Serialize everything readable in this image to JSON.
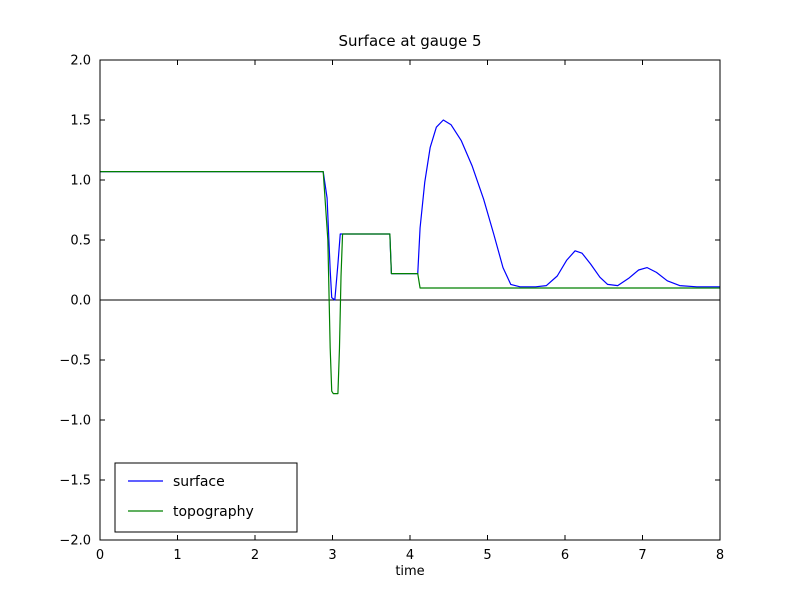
{
  "figure": {
    "background": "#ffffff",
    "axes_edge_color": "#000000"
  },
  "chart_data": {
    "type": "line",
    "title": "Surface at gauge 5",
    "xlabel": "time",
    "ylabel": "",
    "xlim": [
      0,
      8
    ],
    "ylim": [
      -2.0,
      2.0
    ],
    "xticks": [
      0,
      1,
      2,
      3,
      4,
      5,
      6,
      7,
      8
    ],
    "yticks": [
      -2.0,
      -1.5,
      -1.0,
      -0.5,
      0.0,
      0.5,
      1.0,
      1.5,
      2.0
    ],
    "grid": false,
    "zero_line": {
      "y": 0.0,
      "color": "#000000"
    },
    "legend": {
      "position": "lower-left",
      "border_color": "#000000",
      "entries": [
        {
          "label": "surface",
          "color": "#0000ff"
        },
        {
          "label": "topography",
          "color": "#008000"
        }
      ]
    },
    "series": [
      {
        "name": "surface",
        "color": "#0000ff",
        "points": [
          [
            0,
            1.07
          ],
          [
            2.88,
            1.07
          ],
          [
            2.93,
            0.85
          ],
          [
            2.97,
            0.25
          ],
          [
            2.99,
            0.02
          ],
          [
            3.03,
            0.0
          ],
          [
            3.07,
            0.3
          ],
          [
            3.1,
            0.55
          ],
          [
            3.74,
            0.55
          ],
          [
            3.76,
            0.22
          ],
          [
            4.1,
            0.22
          ],
          [
            4.13,
            0.6
          ],
          [
            4.19,
            0.98
          ],
          [
            4.26,
            1.27
          ],
          [
            4.34,
            1.44
          ],
          [
            4.43,
            1.5
          ],
          [
            4.53,
            1.46
          ],
          [
            4.66,
            1.33
          ],
          [
            4.8,
            1.12
          ],
          [
            4.95,
            0.84
          ],
          [
            5.08,
            0.55
          ],
          [
            5.2,
            0.27
          ],
          [
            5.3,
            0.13
          ],
          [
            5.42,
            0.11
          ],
          [
            5.62,
            0.11
          ],
          [
            5.76,
            0.12
          ],
          [
            5.9,
            0.2
          ],
          [
            6.02,
            0.33
          ],
          [
            6.13,
            0.41
          ],
          [
            6.22,
            0.39
          ],
          [
            6.33,
            0.3
          ],
          [
            6.45,
            0.19
          ],
          [
            6.55,
            0.13
          ],
          [
            6.68,
            0.12
          ],
          [
            6.82,
            0.18
          ],
          [
            6.95,
            0.25
          ],
          [
            7.06,
            0.27
          ],
          [
            7.18,
            0.23
          ],
          [
            7.32,
            0.16
          ],
          [
            7.48,
            0.12
          ],
          [
            7.7,
            0.11
          ],
          [
            8.0,
            0.11
          ]
        ]
      },
      {
        "name": "topography",
        "color": "#008000",
        "points": [
          [
            0,
            1.07
          ],
          [
            2.88,
            1.07
          ],
          [
            2.94,
            0.5
          ],
          [
            2.97,
            -0.4
          ],
          [
            2.99,
            -0.76
          ],
          [
            3.01,
            -0.78
          ],
          [
            3.07,
            -0.78
          ],
          [
            3.09,
            -0.4
          ],
          [
            3.11,
            0.2
          ],
          [
            3.13,
            0.55
          ],
          [
            3.74,
            0.55
          ],
          [
            3.76,
            0.22
          ],
          [
            4.1,
            0.22
          ],
          [
            4.13,
            0.1
          ],
          [
            8.0,
            0.1
          ]
        ]
      }
    ]
  }
}
